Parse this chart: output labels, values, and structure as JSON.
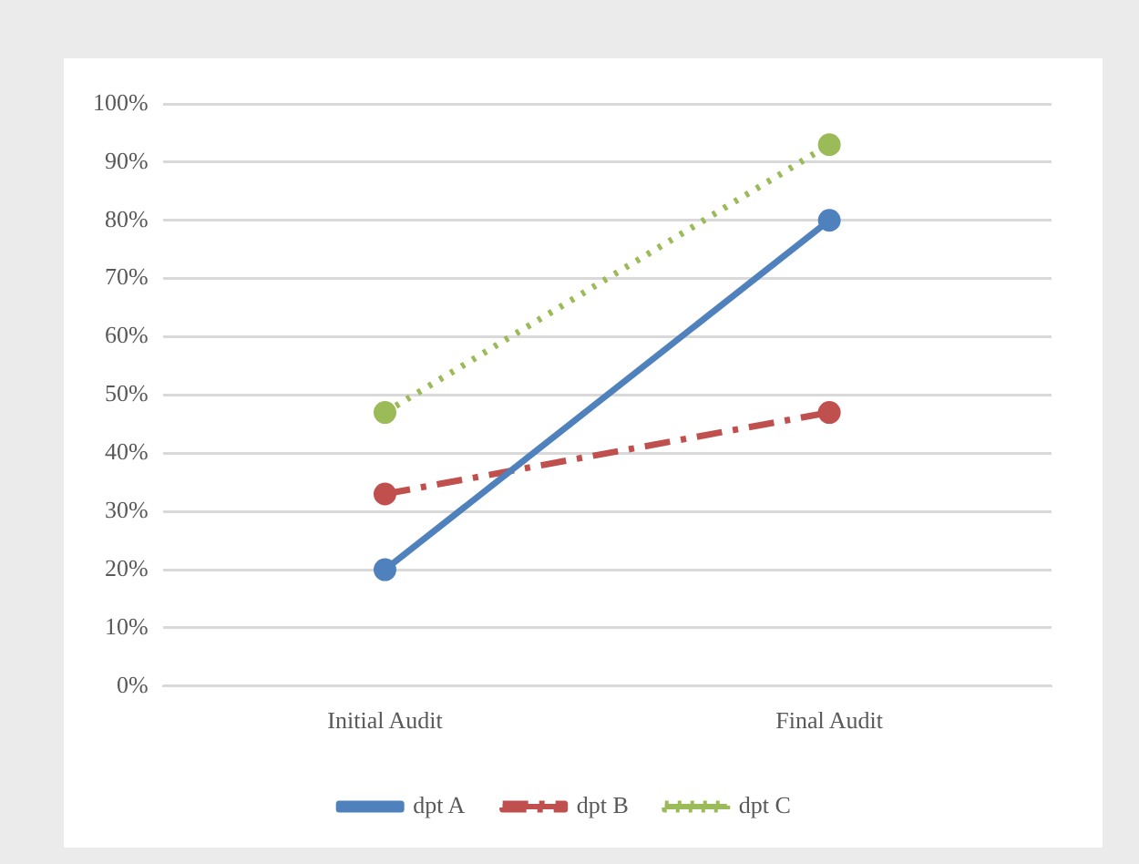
{
  "chart_data": {
    "type": "line",
    "categories": [
      "Initial Audit",
      "Final Audit"
    ],
    "series": [
      {
        "name": "dpt A",
        "color": "#4f81bd",
        "values": [
          20,
          80
        ],
        "line_style": "solid"
      },
      {
        "name": "dpt B",
        "color": "#c0504d",
        "values": [
          33,
          47
        ],
        "line_style": "dashed"
      },
      {
        "name": "dpt C",
        "color": "#9bbb59",
        "values": [
          47,
          93
        ],
        "line_style": "dotted"
      }
    ],
    "ylim": [
      0,
      100
    ],
    "yticks": [
      {
        "value": 0,
        "label": "0%"
      },
      {
        "value": 10,
        "label": "10%"
      },
      {
        "value": 20,
        "label": "20%"
      },
      {
        "value": 30,
        "label": "30%"
      },
      {
        "value": 40,
        "label": "40%"
      },
      {
        "value": 50,
        "label": "50%"
      },
      {
        "value": 60,
        "label": "60%"
      },
      {
        "value": 70,
        "label": "70%"
      },
      {
        "value": 80,
        "label": "80%"
      },
      {
        "value": 90,
        "label": "90%"
      },
      {
        "value": 100,
        "label": "100%"
      }
    ],
    "grid": "y",
    "legend": "bottom",
    "marker": "circle"
  }
}
